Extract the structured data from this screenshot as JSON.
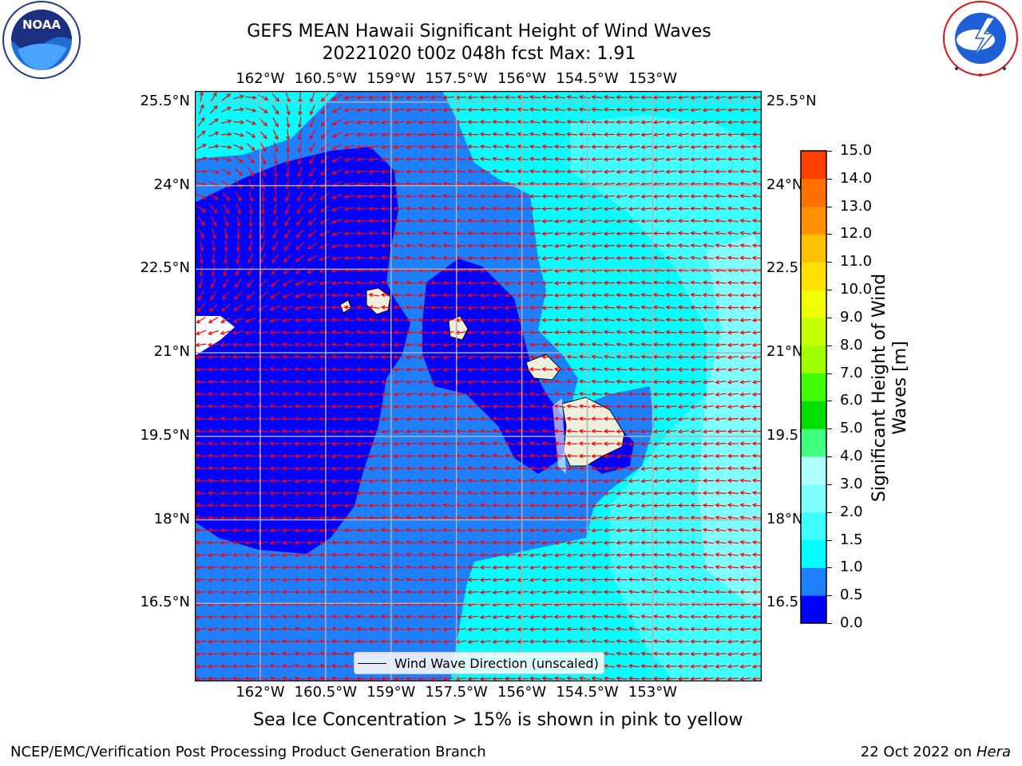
{
  "header": {
    "title_line1": "GEFS MEAN Hawaii Significant Height of Wind Waves",
    "title_line2": "20221020 t00z 048h fcst   Max: 1.91"
  },
  "logos": {
    "noaa": {
      "text": "NOAA",
      "ring_text": "NATIONAL OCEANIC AND ATMOSPHERIC ADMINISTRATION · U.S. DEPARTMENT OF COMMERCE"
    },
    "nws": {
      "ring_text": "NATIONAL WEATHER SERVICE"
    }
  },
  "map": {
    "lon_range": [
      -163.5,
      -150.5
    ],
    "lat_range": [
      15.1,
      25.7
    ],
    "lon_ticks": [
      "162°W",
      "160.5°W",
      "159°W",
      "157.5°W",
      "156°W",
      "154.5°W",
      "153°W"
    ],
    "lon_tick_values": [
      -162,
      -160.5,
      -159,
      -157.5,
      -156,
      -154.5,
      -153
    ],
    "lat_ticks": [
      "25.5°N",
      "24°N",
      "22.5°N",
      "21°N",
      "19.5°N",
      "18°N",
      "16.5°N"
    ],
    "lat_tick_values": [
      25.5,
      24,
      22.5,
      21,
      19.5,
      18,
      16.5
    ],
    "grid": true,
    "vector_color": "#ff0000",
    "land_color": "#eeeedc"
  },
  "legend": {
    "label": "Wind Wave Direction (unscaled)",
    "placement": "bottom-center"
  },
  "colorbar": {
    "label_line1": "Significant Height of Wind",
    "label_line2": "Waves [m]",
    "levels": [
      0.0,
      0.5,
      1.0,
      1.5,
      2.0,
      3.0,
      4.0,
      5.0,
      6.0,
      7.0,
      8.0,
      9.0,
      10.0,
      11.0,
      12.0,
      13.0,
      14.0,
      15.0
    ],
    "tick_labels": [
      "0.0",
      "0.5",
      "1.0",
      "1.5",
      "2.0",
      "3.0",
      "4.0",
      "5.0",
      "6.0",
      "7.0",
      "8.0",
      "9.0",
      "10.0",
      "11.0",
      "12.0",
      "13.0",
      "14.0",
      "15.0"
    ],
    "colors": [
      "#0000ff",
      "#1e7fff",
      "#00ffff",
      "#40ffff",
      "#80ffff",
      "#b0ffff",
      "#40ff80",
      "#00e000",
      "#40ff00",
      "#a0ff00",
      "#c8ff00",
      "#f0ff00",
      "#ffe000",
      "#ffc000",
      "#ff9000",
      "#ff7000",
      "#ff4000",
      "#ff0000"
    ]
  },
  "notes": {
    "sea_ice": "Sea Ice Concentration > 15% is shown in pink to yellow"
  },
  "footer": {
    "left": "NCEP/EMC/Verification Post Processing Product Generation Branch",
    "right_prefix": "22 Oct 2022 on ",
    "right_machine": "Hera"
  }
}
